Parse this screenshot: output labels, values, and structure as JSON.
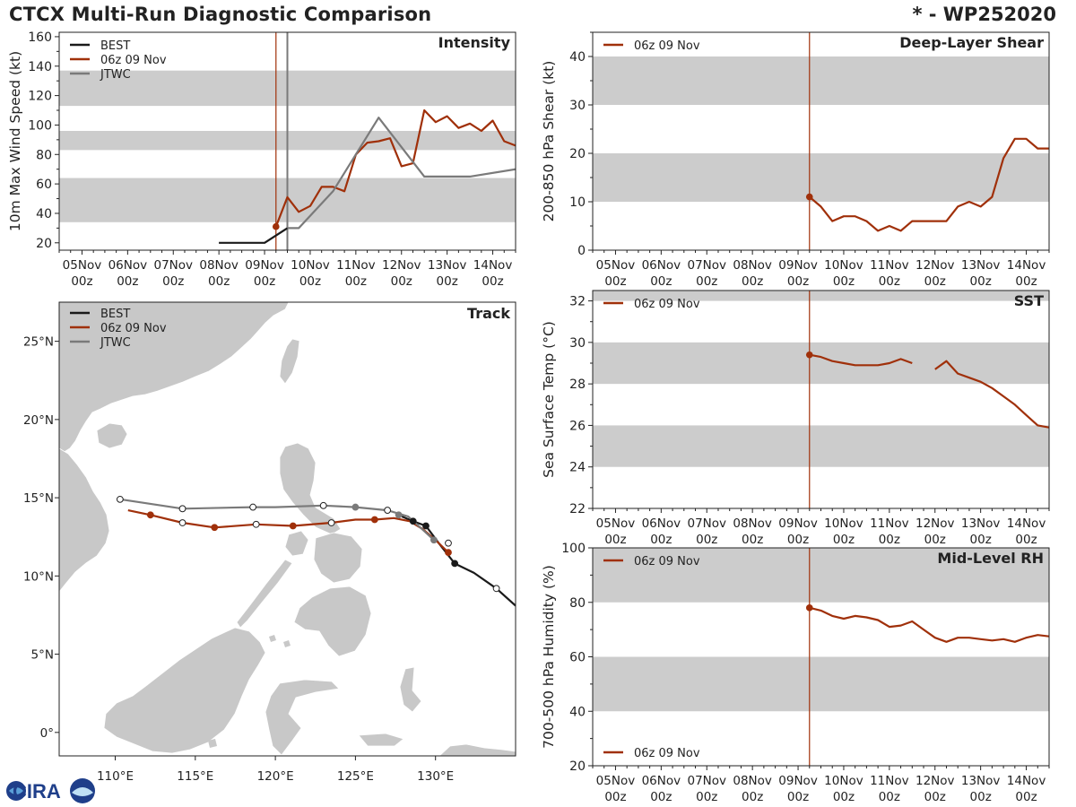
{
  "header": {
    "title": "CTCX Multi-Run Diagnostic Comparison",
    "storm_id": "* - WP252020"
  },
  "logo": {
    "text": "CIRA"
  },
  "colors": {
    "best": "#1a1a1a",
    "run": "#a0300a",
    "jtwc": "#7a7a7a",
    "band": "#cccccc",
    "land": "#c8c8c8"
  },
  "time_ticks": [
    "05Nov\n00z",
    "06Nov\n00z",
    "07Nov\n00z",
    "08Nov\n00z",
    "09Nov\n00z",
    "10Nov\n00z",
    "11Nov\n00z",
    "12Nov\n00z",
    "13Nov\n00z",
    "14Nov\n00z"
  ],
  "chart_data": [
    {
      "id": "intensity",
      "type": "line",
      "title": "Intensity",
      "ylabel": "10m Max Wind Speed (kt)",
      "xlim": [
        -0.5,
        9.5
      ],
      "ylim": [
        15,
        163
      ],
      "yticks": [
        20,
        40,
        60,
        80,
        100,
        120,
        140,
        160
      ],
      "bands": [
        [
          34,
          64
        ],
        [
          83,
          96
        ],
        [
          113,
          137
        ]
      ],
      "vlines": [
        {
          "x": 4.25,
          "series": "06z 09 Nov"
        },
        {
          "x": 4.5,
          "series": "JTWC"
        }
      ],
      "legend": [
        "BEST",
        "06z 09 Nov",
        "JTWC"
      ],
      "series": [
        {
          "name": "BEST",
          "x": [
            3,
            3.5,
            4,
            4.5
          ],
          "y": [
            20,
            20,
            20,
            30
          ]
        },
        {
          "name": "06z 09 Nov",
          "x": [
            4.25,
            4.5,
            4.75,
            5,
            5.25,
            5.5,
            5.75,
            6,
            6.25,
            6.5,
            6.75,
            7,
            7.25,
            7.5,
            7.75,
            8,
            8.25,
            8.5,
            8.75,
            9,
            9.25,
            9.5
          ],
          "y": [
            31,
            51,
            41,
            45,
            58,
            58,
            55,
            80,
            88,
            89,
            91,
            72,
            74,
            110,
            102,
            106,
            98,
            101,
            96,
            103,
            89,
            86
          ]
        },
        {
          "name": "JTWC",
          "x": [
            4.5,
            4.75,
            5.5,
            6.5,
            7.5,
            8.5,
            9.5
          ],
          "y": [
            30,
            30,
            55,
            105,
            65,
            65,
            70
          ]
        }
      ]
    },
    {
      "id": "shear",
      "type": "line",
      "title": "Deep-Layer Shear",
      "ylabel": "200-850 hPa Shear (kt)",
      "xlim": [
        -0.5,
        9.5
      ],
      "ylim": [
        0,
        45
      ],
      "yticks": [
        0,
        10,
        20,
        30,
        40
      ],
      "bands": [
        [
          10,
          20
        ],
        [
          30,
          40
        ]
      ],
      "vlines": [
        {
          "x": 4.25,
          "series": "06z 09 Nov"
        }
      ],
      "legend": [
        "06z 09 Nov"
      ],
      "series": [
        {
          "name": "06z 09 Nov",
          "x": [
            4.25,
            4.5,
            4.75,
            5,
            5.25,
            5.5,
            5.75,
            6,
            6.25,
            6.5,
            6.75,
            7,
            7.25,
            7.5,
            7.75,
            8,
            8.25,
            8.5,
            8.75,
            9,
            9.25,
            9.5
          ],
          "y": [
            11,
            9,
            6,
            7,
            7,
            6,
            4,
            5,
            4,
            6,
            6,
            6,
            6,
            9,
            10,
            9,
            11,
            19,
            23,
            23,
            21,
            21
          ]
        }
      ]
    },
    {
      "id": "sst",
      "type": "line",
      "title": "SST",
      "ylabel": "Sea Surface Temp (°C)",
      "xlim": [
        -0.5,
        9.5
      ],
      "ylim": [
        22,
        32.5
      ],
      "yticks": [
        22,
        24,
        26,
        28,
        30,
        32
      ],
      "bands": [
        [
          24,
          26
        ],
        [
          28,
          30
        ],
        [
          32,
          32.5
        ]
      ],
      "vlines": [
        {
          "x": 4.25,
          "series": "06z 09 Nov"
        }
      ],
      "legend": [
        "06z 09 Nov"
      ],
      "series": [
        {
          "name": "06z 09 Nov",
          "x": [
            4.25,
            4.5,
            4.75,
            5,
            5.25,
            5.5,
            5.75,
            6,
            6.25,
            6.5,
            6.75,
            7,
            7.25,
            7.5,
            7.75,
            8,
            8.25,
            8.5,
            8.75,
            9,
            9.25,
            9.5
          ],
          "y": [
            29.4,
            29.3,
            29.1,
            29.0,
            28.9,
            28.9,
            28.9,
            29.0,
            29.2,
            29.0,
            null,
            28.7,
            29.1,
            28.5,
            28.3,
            28.1,
            27.8,
            27.4,
            27.0,
            26.5,
            26.0,
            25.9
          ]
        }
      ]
    },
    {
      "id": "rh",
      "type": "line",
      "title": "Mid-Level RH",
      "ylabel": "700-500 hPa Humidity (%)",
      "xlim": [
        -0.5,
        9.5
      ],
      "ylim": [
        20,
        100
      ],
      "yticks": [
        20,
        40,
        60,
        80,
        100
      ],
      "bands": [
        [
          40,
          60
        ],
        [
          80,
          100
        ]
      ],
      "vlines": [
        {
          "x": 4.25,
          "series": "06z 09 Nov"
        }
      ],
      "legend": [
        "06z 09 Nov"
      ],
      "series": [
        {
          "name": "06z 09 Nov",
          "x": [
            4.25,
            4.5,
            4.75,
            5,
            5.25,
            5.5,
            5.75,
            6,
            6.25,
            6.5,
            6.75,
            7,
            7.25,
            7.5,
            7.75,
            8,
            8.25,
            8.5,
            8.75,
            9,
            9.25,
            9.5
          ],
          "y": [
            78,
            77,
            75,
            74,
            75,
            74.5,
            73.5,
            71,
            71.5,
            73,
            70,
            67,
            65.5,
            67,
            67,
            66.5,
            66,
            66.5,
            65.5,
            67,
            68,
            67.5
          ]
        }
      ]
    },
    {
      "id": "track",
      "type": "scatter",
      "title": "Track",
      "xlim": [
        106.5,
        135
      ],
      "ylim": [
        -1.5,
        27.5
      ],
      "xticks": [
        110,
        115,
        120,
        125,
        130
      ],
      "xtick_labels": [
        "110°E",
        "115°E",
        "120°E",
        "125°E",
        "130°E"
      ],
      "yticks": [
        0,
        5,
        10,
        15,
        20,
        25
      ],
      "ytick_labels": [
        "0°",
        "5°N",
        "10°N",
        "15°N",
        "20°N",
        "25°N"
      ],
      "legend": [
        "BEST",
        "06z 09 Nov",
        "JTWC"
      ],
      "series": [
        {
          "name": "BEST",
          "lon": [
            135.0,
            133.8,
            132.4,
            131.2,
            130.2,
            129.4,
            128.6,
            127.9
          ],
          "lat": [
            8.1,
            9.2,
            10.2,
            10.8,
            12.1,
            13.2,
            13.5,
            13.8
          ],
          "markers": [
            {
              "lon": 133.8,
              "lat": 9.2,
              "filled": false
            },
            {
              "lon": 131.2,
              "lat": 10.8,
              "filled": true
            },
            {
              "lon": 129.4,
              "lat": 13.2,
              "filled": true
            },
            {
              "lon": 128.6,
              "lat": 13.5,
              "filled": true
            }
          ]
        },
        {
          "name": "06z 09 Nov",
          "lon": [
            130.8,
            130.1,
            129.2,
            128.4,
            127.4,
            126.2,
            125.0,
            123.5,
            121.1,
            118.8,
            116.2,
            114.2,
            112.2,
            110.8
          ],
          "lat": [
            11.5,
            12.2,
            13.0,
            13.5,
            13.7,
            13.6,
            13.6,
            13.4,
            13.2,
            13.3,
            13.1,
            13.4,
            13.9,
            14.2
          ],
          "markers": [
            {
              "lon": 130.8,
              "lat": 11.5,
              "filled": true
            },
            {
              "lon": 126.2,
              "lat": 13.6,
              "filled": true
            },
            {
              "lon": 121.1,
              "lat": 13.2,
              "filled": true
            },
            {
              "lon": 116.2,
              "lat": 13.1,
              "filled": true
            },
            {
              "lon": 112.2,
              "lat": 13.9,
              "filled": true
            },
            {
              "lon": 130.8,
              "lat": 12.1,
              "filled": false
            },
            {
              "lon": 123.5,
              "lat": 13.4,
              "filled": false
            },
            {
              "lon": 118.8,
              "lat": 13.3,
              "filled": false
            },
            {
              "lon": 114.2,
              "lat": 13.4,
              "filled": false
            }
          ]
        },
        {
          "name": "JTWC",
          "lon": [
            129.9,
            128.3,
            127.0,
            125.0,
            123.0,
            120.0,
            118.6,
            114.2,
            110.3
          ],
          "lat": [
            12.3,
            13.8,
            14.2,
            14.4,
            14.5,
            14.4,
            14.4,
            14.3,
            14.9
          ],
          "markers": [
            {
              "lon": 129.9,
              "lat": 12.3,
              "filled": true
            },
            {
              "lon": 127.7,
              "lat": 13.9,
              "filled": true
            },
            {
              "lon": 125.0,
              "lat": 14.4,
              "filled": true
            },
            {
              "lon": 127.0,
              "lat": 14.2,
              "filled": false
            },
            {
              "lon": 123.0,
              "lat": 14.5,
              "filled": false
            },
            {
              "lon": 118.6,
              "lat": 14.4,
              "filled": false
            },
            {
              "lon": 114.2,
              "lat": 14.3,
              "filled": false
            },
            {
              "lon": 110.3,
              "lat": 14.9,
              "filled": false
            }
          ]
        }
      ]
    }
  ]
}
